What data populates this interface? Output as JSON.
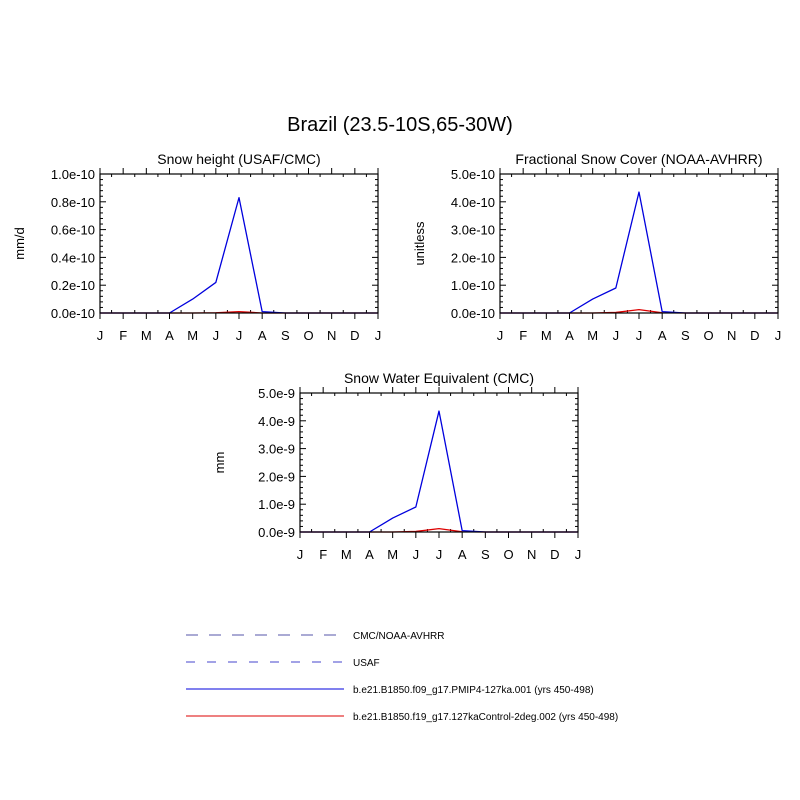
{
  "figure": {
    "title": "Brazil (23.5-10S,65-30W)"
  },
  "chart_data": [
    {
      "type": "line",
      "title": "Snow height (USAF/CMC)",
      "xlabel": "",
      "ylabel": "mm/d",
      "x": [
        "J",
        "F",
        "M",
        "A",
        "M",
        "J",
        "J",
        "A",
        "S",
        "O",
        "N",
        "D",
        "J"
      ],
      "ylim": [
        0,
        1e-10
      ],
      "yticks": [
        0,
        2e-11,
        4e-11,
        6e-11,
        8e-11,
        1e-10
      ],
      "ytick_labels": [
        "0.0e-10",
        "0.2e-10",
        "0.4e-10",
        "0.6e-10",
        "0.8e-10",
        "1.0e-10"
      ],
      "series": [
        {
          "name": "b.e21.B1850.f09_g17.PMIP4-127ka.001 (yrs 450-498)",
          "color": "#0000dd",
          "values": [
            0,
            0,
            0,
            0,
            1e-11,
            2.2e-11,
            8.3e-11,
            1e-12,
            0,
            0,
            0,
            0,
            0
          ]
        },
        {
          "name": "b.e21.B1850.f19_g17.127kaControl-2deg.002 (yrs 450-498)",
          "color": "#dd0000",
          "values": [
            0,
            0,
            0,
            0,
            0,
            2e-13,
            1e-12,
            0,
            0,
            0,
            0,
            0,
            0
          ]
        }
      ]
    },
    {
      "type": "line",
      "title": "Fractional Snow Cover (NOAA-AVHRR)",
      "xlabel": "",
      "ylabel": "unitless",
      "x": [
        "J",
        "F",
        "M",
        "A",
        "M",
        "J",
        "J",
        "A",
        "S",
        "O",
        "N",
        "D",
        "J"
      ],
      "ylim": [
        0,
        5e-10
      ],
      "yticks": [
        0,
        1e-10,
        2e-10,
        3e-10,
        4e-10,
        5e-10
      ],
      "ytick_labels": [
        "0.0e-10",
        "1.0e-10",
        "2.0e-10",
        "3.0e-10",
        "4.0e-10",
        "5.0e-10"
      ],
      "series": [
        {
          "name": "b.e21.B1850.f09_g17.PMIP4-127ka.001 (yrs 450-498)",
          "color": "#0000dd",
          "values": [
            0,
            0,
            0,
            0,
            5e-11,
            9e-11,
            4.35e-10,
            5e-12,
            0,
            0,
            0,
            0,
            0
          ]
        },
        {
          "name": "b.e21.B1850.f19_g17.127kaControl-2deg.002 (yrs 450-498)",
          "color": "#dd0000",
          "values": [
            0,
            0,
            0,
            0,
            0,
            2e-12,
            1.2e-11,
            1e-12,
            0,
            0,
            0,
            0,
            0
          ]
        }
      ]
    },
    {
      "type": "line",
      "title": "Snow Water Equivalent (CMC)",
      "xlabel": "",
      "ylabel": "mm",
      "x": [
        "J",
        "F",
        "M",
        "A",
        "M",
        "J",
        "J",
        "A",
        "S",
        "O",
        "N",
        "D",
        "J"
      ],
      "ylim": [
        0,
        5e-09
      ],
      "yticks": [
        0,
        1e-09,
        2e-09,
        3e-09,
        4e-09,
        5e-09
      ],
      "ytick_labels": [
        "0.0e-9",
        "1.0e-9",
        "2.0e-9",
        "3.0e-9",
        "4.0e-9",
        "5.0e-9"
      ],
      "series": [
        {
          "name": "b.e21.B1850.f09_g17.PMIP4-127ka.001 (yrs 450-498)",
          "color": "#0000dd",
          "values": [
            0,
            0,
            0,
            0,
            5e-10,
            9e-10,
            4.35e-09,
            5e-11,
            0,
            0,
            0,
            0,
            0
          ]
        },
        {
          "name": "b.e21.B1850.f19_g17.127kaControl-2deg.002 (yrs 450-498)",
          "color": "#dd0000",
          "values": [
            0,
            0,
            0,
            0,
            0,
            2e-11,
            1.2e-10,
            1e-11,
            0,
            0,
            0,
            0,
            0
          ]
        }
      ]
    }
  ],
  "legend": {
    "items": [
      {
        "label": "CMC/NOAA-AVHRR",
        "color": "#5555aa",
        "style": "long-dash"
      },
      {
        "label": "USAF",
        "color": "#4444cc",
        "style": "dash"
      },
      {
        "label": "b.e21.B1850.f09_g17.PMIP4-127ka.001 (yrs 450-498)",
        "color": "#0000dd",
        "style": "solid"
      },
      {
        "label": "b.e21.B1850.f19_g17.127kaControl-2deg.002 (yrs 450-498)",
        "color": "#dd0000",
        "style": "solid"
      }
    ]
  }
}
